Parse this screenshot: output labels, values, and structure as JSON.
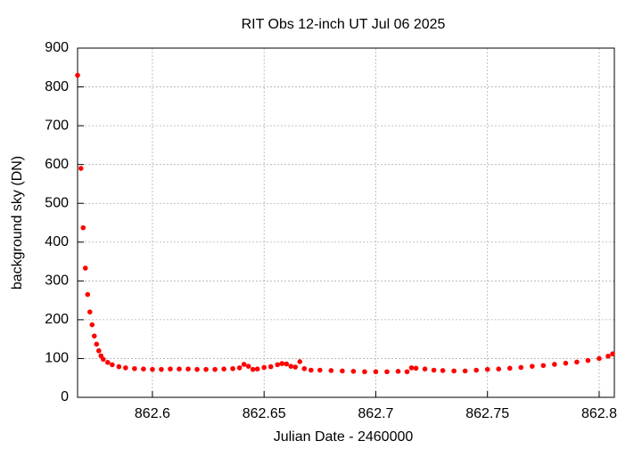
{
  "chart_data": {
    "type": "scatter",
    "title": "RIT Obs 12-inch UT Jul 06 2025",
    "x_label": "Julian Date - 2460000",
    "y_label": "background sky (DN)",
    "color": "#ff0000",
    "grid": true,
    "xlim": [
      862.5665,
      862.8068
    ],
    "ylim": [
      0,
      900
    ],
    "xticks": [
      862.6,
      862.65,
      862.7,
      862.75,
      862.8
    ],
    "yticks": [
      0,
      100,
      200,
      300,
      400,
      500,
      600,
      700,
      800,
      900
    ],
    "x": [
      862.5665,
      862.568,
      862.569,
      862.57,
      862.571,
      862.572,
      862.573,
      862.574,
      862.575,
      862.576,
      862.577,
      862.578,
      862.58,
      862.582,
      862.585,
      862.588,
      862.592,
      862.596,
      862.6,
      862.604,
      862.608,
      862.612,
      862.616,
      862.62,
      862.624,
      862.628,
      862.632,
      862.636,
      862.639,
      862.641,
      862.643,
      862.645,
      862.647,
      862.65,
      862.653,
      862.656,
      862.658,
      862.66,
      862.662,
      862.664,
      862.666,
      862.668,
      862.671,
      862.675,
      862.68,
      862.685,
      862.69,
      862.695,
      862.7,
      862.705,
      862.71,
      862.714,
      862.716,
      862.718,
      862.722,
      862.726,
      862.73,
      862.735,
      862.74,
      862.745,
      862.75,
      862.755,
      862.76,
      862.765,
      862.77,
      862.775,
      862.78,
      862.785,
      862.79,
      862.795,
      862.8,
      862.804,
      862.806
    ],
    "values": [
      830,
      590,
      437,
      333,
      265,
      220,
      187,
      158,
      137,
      120,
      107,
      98,
      90,
      84,
      79,
      76,
      74,
      73,
      72,
      72,
      73,
      73,
      73,
      72,
      72,
      72,
      73,
      74,
      76,
      85,
      80,
      72,
      73,
      77,
      79,
      84,
      87,
      86,
      80,
      78,
      92,
      74,
      70,
      70,
      69,
      68,
      67,
      66,
      66,
      66,
      67,
      66,
      76,
      75,
      73,
      70,
      69,
      68,
      68,
      70,
      72,
      73,
      75,
      77,
      80,
      82,
      85,
      88,
      91,
      95,
      100,
      106,
      112
    ]
  }
}
